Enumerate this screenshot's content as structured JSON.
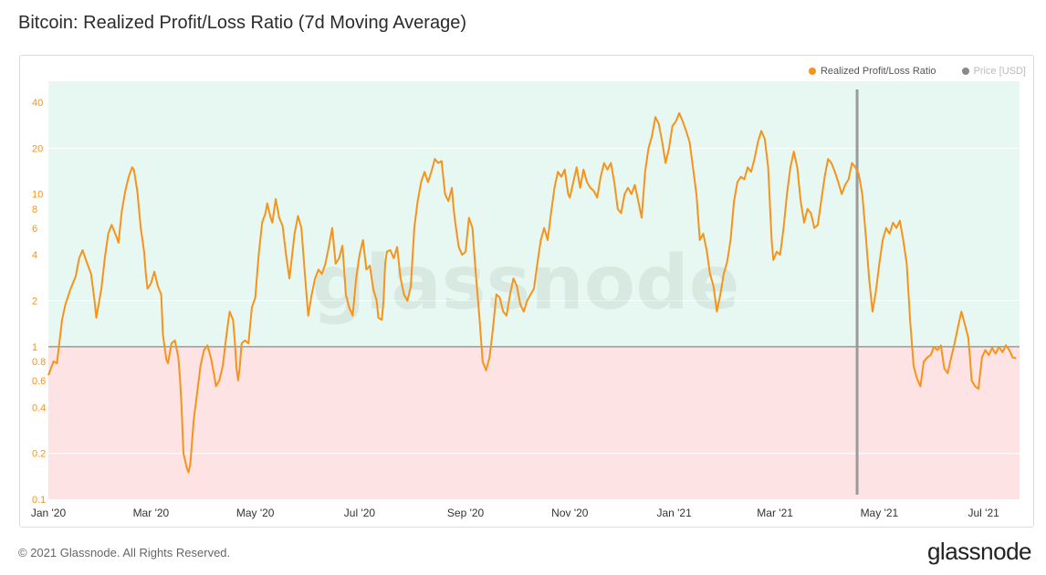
{
  "header": {
    "title": "Bitcoin: Realized Profit/Loss Ratio (7d Moving Average)"
  },
  "legend": [
    {
      "label": "Realized Profit/Loss Ratio",
      "color": "#f7931a",
      "active": true
    },
    {
      "label": "Price [USD]",
      "color": "#8a8a8a",
      "active": false
    }
  ],
  "watermark": "glassnode",
  "footer": {
    "copyright": "© 2021 Glassnode. All Rights Reserved.",
    "brand": "glassnode"
  },
  "chart_data": {
    "type": "line",
    "scale": "log",
    "ylim": [
      0.1,
      55
    ],
    "y_ticks": [
      0.1,
      0.2,
      0.4,
      0.6,
      0.8,
      1,
      2,
      4,
      6,
      8,
      10,
      20,
      40
    ],
    "x_ticks": [
      "Jan '20",
      "Mar '20",
      "May '20",
      "Jul '20",
      "Sep '20",
      "Nov '20",
      "Jan '21",
      "Mar '21",
      "May '21",
      "Jul '21"
    ],
    "x_tick_days": [
      0,
      60,
      121,
      182,
      244,
      305,
      366,
      425,
      486,
      547
    ],
    "xlim_days": [
      0,
      568
    ],
    "reference_line": 1,
    "marker_day": 473,
    "colors": {
      "line": "#f7931a",
      "profit_zone": "#e6f8f1",
      "loss_zone": "#fde3e4",
      "reference": "#888888",
      "marker": "#9a9a9a"
    },
    "series": [
      {
        "name": "Realized Profit/Loss Ratio",
        "points": [
          [
            0,
            0.65
          ],
          [
            3,
            0.8
          ],
          [
            5,
            0.78
          ],
          [
            8,
            1.5
          ],
          [
            10,
            1.9
          ],
          [
            13,
            2.4
          ],
          [
            16,
            2.9
          ],
          [
            18,
            3.8
          ],
          [
            20,
            4.3
          ],
          [
            22,
            3.7
          ],
          [
            25,
            3.0
          ],
          [
            27,
            2.0
          ],
          [
            28,
            1.55
          ],
          [
            31,
            2.4
          ],
          [
            33,
            3.8
          ],
          [
            35,
            5.5
          ],
          [
            37,
            6.3
          ],
          [
            40,
            5.2
          ],
          [
            41,
            4.8
          ],
          [
            43,
            7.8
          ],
          [
            45,
            10.5
          ],
          [
            47,
            13.0
          ],
          [
            49,
            15.0
          ],
          [
            50,
            14.5
          ],
          [
            52,
            10.5
          ],
          [
            54,
            6.0
          ],
          [
            56,
            4.2
          ],
          [
            57,
            3.0
          ],
          [
            58,
            2.4
          ],
          [
            60,
            2.6
          ],
          [
            62,
            3.1
          ],
          [
            64,
            2.5
          ],
          [
            66,
            2.2
          ],
          [
            67,
            1.2
          ],
          [
            69,
            0.82
          ],
          [
            70,
            0.78
          ],
          [
            72,
            1.05
          ],
          [
            74,
            1.1
          ],
          [
            76,
            0.85
          ],
          [
            77,
            0.62
          ],
          [
            78,
            0.38
          ],
          [
            79,
            0.2
          ],
          [
            81,
            0.16
          ],
          [
            82,
            0.15
          ],
          [
            83,
            0.17
          ],
          [
            85,
            0.33
          ],
          [
            87,
            0.5
          ],
          [
            89,
            0.75
          ],
          [
            91,
            0.95
          ],
          [
            93,
            1.02
          ],
          [
            95,
            0.85
          ],
          [
            97,
            0.65
          ],
          [
            98,
            0.55
          ],
          [
            100,
            0.6
          ],
          [
            102,
            0.75
          ],
          [
            104,
            1.15
          ],
          [
            105,
            1.4
          ],
          [
            106,
            1.7
          ],
          [
            108,
            1.5
          ],
          [
            109,
            1.1
          ],
          [
            110,
            0.72
          ],
          [
            111,
            0.6
          ],
          [
            112,
            0.75
          ],
          [
            113,
            1.05
          ],
          [
            115,
            1.1
          ],
          [
            117,
            1.05
          ],
          [
            119,
            1.8
          ],
          [
            121,
            2.1
          ],
          [
            123,
            4.0
          ],
          [
            125,
            6.5
          ],
          [
            127,
            7.5
          ],
          [
            128,
            8.7
          ],
          [
            130,
            7.0
          ],
          [
            131,
            6.5
          ],
          [
            133,
            9.3
          ],
          [
            135,
            7.0
          ],
          [
            137,
            6.2
          ],
          [
            139,
            4.0
          ],
          [
            141,
            2.8
          ],
          [
            142,
            3.5
          ],
          [
            144,
            5.5
          ],
          [
            146,
            7.2
          ],
          [
            148,
            6.0
          ],
          [
            150,
            3.0
          ],
          [
            152,
            1.6
          ],
          [
            154,
            2.2
          ],
          [
            156,
            2.8
          ],
          [
            158,
            3.2
          ],
          [
            160,
            3.0
          ],
          [
            162,
            3.5
          ],
          [
            164,
            4.5
          ],
          [
            166,
            6.0
          ],
          [
            168,
            3.5
          ],
          [
            170,
            3.8
          ],
          [
            172,
            4.6
          ],
          [
            174,
            2.2
          ],
          [
            176,
            1.8
          ],
          [
            178,
            1.6
          ],
          [
            180,
            2.8
          ],
          [
            182,
            4.0
          ],
          [
            184,
            5.0
          ],
          [
            186,
            3.2
          ],
          [
            188,
            3.4
          ],
          [
            190,
            2.4
          ],
          [
            192,
            2.0
          ],
          [
            193,
            1.55
          ],
          [
            195,
            1.5
          ],
          [
            196,
            2.0
          ],
          [
            197,
            3.5
          ],
          [
            198,
            4.2
          ],
          [
            200,
            4.3
          ],
          [
            202,
            3.8
          ],
          [
            204,
            4.5
          ],
          [
            206,
            2.8
          ],
          [
            208,
            2.2
          ],
          [
            210,
            2.0
          ],
          [
            212,
            2.5
          ],
          [
            214,
            6.0
          ],
          [
            216,
            9.0
          ],
          [
            218,
            12.0
          ],
          [
            220,
            14.0
          ],
          [
            222,
            12.0
          ],
          [
            224,
            14.0
          ],
          [
            226,
            17.0
          ],
          [
            228,
            16.0
          ],
          [
            230,
            16.5
          ],
          [
            232,
            10.0
          ],
          [
            234,
            9.0
          ],
          [
            236,
            11.0
          ],
          [
            237,
            8.0
          ],
          [
            238,
            6.5
          ],
          [
            240,
            4.5
          ],
          [
            242,
            4.0
          ],
          [
            244,
            4.2
          ],
          [
            246,
            7.0
          ],
          [
            248,
            6.0
          ],
          [
            250,
            3.0
          ],
          [
            252,
            1.6
          ],
          [
            254,
            0.8
          ],
          [
            256,
            0.7
          ],
          [
            258,
            0.85
          ],
          [
            260,
            1.3
          ],
          [
            262,
            2.2
          ],
          [
            264,
            2.1
          ],
          [
            266,
            1.7
          ],
          [
            268,
            1.6
          ],
          [
            270,
            2.2
          ],
          [
            272,
            2.8
          ],
          [
            274,
            2.5
          ],
          [
            276,
            1.9
          ],
          [
            278,
            1.7
          ],
          [
            280,
            2.0
          ],
          [
            282,
            2.2
          ],
          [
            284,
            2.4
          ],
          [
            286,
            3.5
          ],
          [
            288,
            5.0
          ],
          [
            290,
            6.0
          ],
          [
            292,
            5.0
          ],
          [
            294,
            7.5
          ],
          [
            296,
            11.0
          ],
          [
            298,
            14.0
          ],
          [
            300,
            13.0
          ],
          [
            302,
            14.5
          ],
          [
            304,
            10.0
          ],
          [
            305,
            9.5
          ],
          [
            307,
            12.0
          ],
          [
            309,
            15.0
          ],
          [
            311,
            11.0
          ],
          [
            313,
            14.5
          ],
          [
            315,
            12.0
          ],
          [
            317,
            11.0
          ],
          [
            319,
            10.5
          ],
          [
            321,
            9.5
          ],
          [
            323,
            13.0
          ],
          [
            325,
            16.0
          ],
          [
            327,
            14.5
          ],
          [
            329,
            16.0
          ],
          [
            331,
            12.0
          ],
          [
            333,
            8.0
          ],
          [
            335,
            7.5
          ],
          [
            337,
            10.0
          ],
          [
            339,
            11.0
          ],
          [
            341,
            10.0
          ],
          [
            343,
            11.5
          ],
          [
            345,
            9.0
          ],
          [
            347,
            7.0
          ],
          [
            349,
            14.0
          ],
          [
            351,
            20.0
          ],
          [
            353,
            24.0
          ],
          [
            355,
            32.0
          ],
          [
            357,
            29.0
          ],
          [
            359,
            22.0
          ],
          [
            361,
            16.0
          ],
          [
            363,
            20.0
          ],
          [
            365,
            28.0
          ],
          [
            367,
            30.0
          ],
          [
            369,
            34.0
          ],
          [
            371,
            30.0
          ],
          [
            373,
            26.0
          ],
          [
            375,
            22.0
          ],
          [
            377,
            15.0
          ],
          [
            379,
            10.0
          ],
          [
            381,
            5.0
          ],
          [
            383,
            5.5
          ],
          [
            385,
            4.3
          ],
          [
            387,
            3.0
          ],
          [
            389,
            2.5
          ],
          [
            391,
            1.7
          ],
          [
            393,
            2.2
          ],
          [
            395,
            3.0
          ],
          [
            397,
            3.6
          ],
          [
            399,
            5.0
          ],
          [
            401,
            9.0
          ],
          [
            403,
            12.0
          ],
          [
            405,
            13.0
          ],
          [
            407,
            12.5
          ],
          [
            409,
            15.0
          ],
          [
            411,
            14.0
          ],
          [
            413,
            17.0
          ],
          [
            415,
            22.0
          ],
          [
            417,
            26.0
          ],
          [
            419,
            23.0
          ],
          [
            421,
            15.0
          ],
          [
            423,
            5.0
          ],
          [
            424,
            3.7
          ],
          [
            426,
            4.2
          ],
          [
            428,
            4.0
          ],
          [
            430,
            6.0
          ],
          [
            432,
            10.0
          ],
          [
            434,
            15.0
          ],
          [
            436,
            19.0
          ],
          [
            438,
            15.0
          ],
          [
            440,
            9.0
          ],
          [
            442,
            6.5
          ],
          [
            444,
            8.0
          ],
          [
            446,
            7.5
          ],
          [
            448,
            6.0
          ],
          [
            450,
            6.3
          ],
          [
            452,
            9.0
          ],
          [
            454,
            13.0
          ],
          [
            456,
            17.0
          ],
          [
            458,
            16.0
          ],
          [
            460,
            14.0
          ],
          [
            462,
            12.0
          ],
          [
            464,
            10.0
          ],
          [
            466,
            11.5
          ],
          [
            468,
            12.5
          ],
          [
            470,
            16.0
          ],
          [
            472,
            15.0
          ],
          [
            474,
            13.5
          ],
          [
            476,
            10.0
          ],
          [
            478,
            5.5
          ],
          [
            480,
            2.8
          ],
          [
            482,
            1.7
          ],
          [
            484,
            2.3
          ],
          [
            486,
            3.5
          ],
          [
            488,
            5.0
          ],
          [
            490,
            6.0
          ],
          [
            492,
            5.5
          ],
          [
            494,
            6.5
          ],
          [
            496,
            6.0
          ],
          [
            498,
            6.7
          ],
          [
            500,
            5.0
          ],
          [
            502,
            3.5
          ],
          [
            504,
            1.5
          ],
          [
            506,
            0.75
          ],
          [
            508,
            0.62
          ],
          [
            510,
            0.55
          ],
          [
            512,
            0.8
          ],
          [
            514,
            0.85
          ],
          [
            516,
            0.88
          ],
          [
            518,
            1.0
          ],
          [
            520,
            0.95
          ],
          [
            522,
            1.02
          ],
          [
            524,
            0.72
          ],
          [
            526,
            0.67
          ],
          [
            528,
            0.85
          ],
          [
            530,
            1.05
          ],
          [
            532,
            1.35
          ],
          [
            534,
            1.7
          ],
          [
            536,
            1.4
          ],
          [
            538,
            1.15
          ],
          [
            539,
            0.85
          ],
          [
            540,
            0.6
          ],
          [
            542,
            0.55
          ],
          [
            544,
            0.53
          ],
          [
            546,
            0.85
          ],
          [
            548,
            0.95
          ],
          [
            550,
            0.88
          ],
          [
            552,
            0.98
          ],
          [
            554,
            0.9
          ],
          [
            556,
            1.0
          ],
          [
            558,
            0.92
          ],
          [
            560,
            1.02
          ],
          [
            562,
            0.95
          ],
          [
            564,
            0.85
          ],
          [
            566,
            0.84
          ]
        ]
      }
    ]
  }
}
